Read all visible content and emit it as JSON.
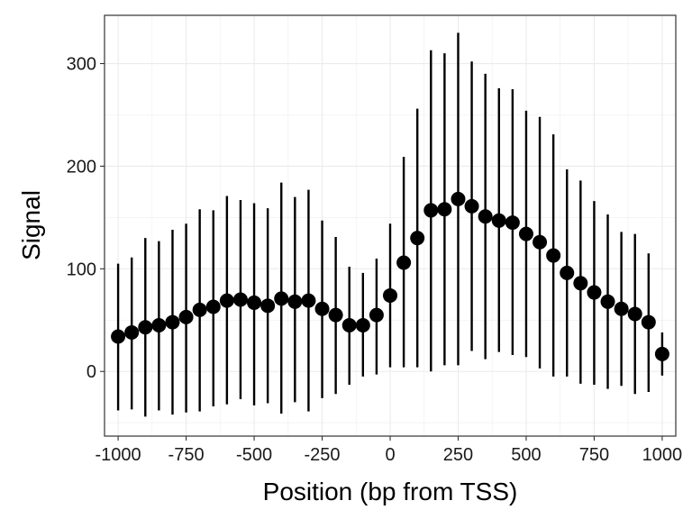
{
  "chart_data": {
    "type": "scatter",
    "title": "",
    "xlabel": "Position (bp from TSS)",
    "ylabel": "Signal",
    "xlim": [
      -1050,
      1050
    ],
    "ylim": [
      -63,
      347
    ],
    "x_ticks": [
      -1000,
      -750,
      -500,
      -250,
      0,
      250,
      500,
      750,
      1000
    ],
    "x_tick_labels": [
      "-1000",
      "-750",
      "-500",
      "-250",
      "0",
      "250",
      "500",
      "750",
      "1000"
    ],
    "y_ticks": [
      0,
      100,
      200,
      300
    ],
    "y_tick_labels": [
      "0",
      "100",
      "200",
      "300"
    ],
    "grid": true,
    "legend": "none",
    "error_bars": true,
    "point_color": "#000000",
    "points": [
      {
        "x": -1000,
        "y": 34,
        "ymin": -38,
        "ymax": 105
      },
      {
        "x": -950,
        "y": 38,
        "ymin": -37,
        "ymax": 111
      },
      {
        "x": -900,
        "y": 43,
        "ymin": -44,
        "ymax": 130
      },
      {
        "x": -850,
        "y": 45,
        "ymin": -38,
        "ymax": 127
      },
      {
        "x": -800,
        "y": 48,
        "ymin": -42,
        "ymax": 138
      },
      {
        "x": -750,
        "y": 53,
        "ymin": -40,
        "ymax": 144
      },
      {
        "x": -700,
        "y": 60,
        "ymin": -39,
        "ymax": 158
      },
      {
        "x": -650,
        "y": 63,
        "ymin": -34,
        "ymax": 157
      },
      {
        "x": -600,
        "y": 69,
        "ymin": -32,
        "ymax": 171
      },
      {
        "x": -550,
        "y": 70,
        "ymin": -27,
        "ymax": 167
      },
      {
        "x": -500,
        "y": 67,
        "ymin": -33,
        "ymax": 164
      },
      {
        "x": -450,
        "y": 64,
        "ymin": -31,
        "ymax": 159
      },
      {
        "x": -400,
        "y": 71,
        "ymin": -41,
        "ymax": 184
      },
      {
        "x": -350,
        "y": 68,
        "ymin": -30,
        "ymax": 170
      },
      {
        "x": -300,
        "y": 69,
        "ymin": -39,
        "ymax": 177
      },
      {
        "x": -250,
        "y": 61,
        "ymin": -26,
        "ymax": 147
      },
      {
        "x": -200,
        "y": 55,
        "ymin": -22,
        "ymax": 131
      },
      {
        "x": -150,
        "y": 45,
        "ymin": -13,
        "ymax": 102
      },
      {
        "x": -100,
        "y": 45,
        "ymin": -5,
        "ymax": 96
      },
      {
        "x": -50,
        "y": 55,
        "ymin": -3,
        "ymax": 110
      },
      {
        "x": 0,
        "y": 74,
        "ymin": 4,
        "ymax": 144
      },
      {
        "x": 50,
        "y": 106,
        "ymin": 4,
        "ymax": 209
      },
      {
        "x": 100,
        "y": 130,
        "ymin": 4,
        "ymax": 256
      },
      {
        "x": 150,
        "y": 157,
        "ymin": 0,
        "ymax": 313
      },
      {
        "x": 200,
        "y": 158,
        "ymin": 6,
        "ymax": 310
      },
      {
        "x": 250,
        "y": 168,
        "ymin": 6,
        "ymax": 330
      },
      {
        "x": 300,
        "y": 161,
        "ymin": 20,
        "ymax": 302
      },
      {
        "x": 350,
        "y": 151,
        "ymin": 12,
        "ymax": 290
      },
      {
        "x": 400,
        "y": 147,
        "ymin": 19,
        "ymax": 276
      },
      {
        "x": 450,
        "y": 145,
        "ymin": 16,
        "ymax": 275
      },
      {
        "x": 500,
        "y": 134,
        "ymin": 14,
        "ymax": 254
      },
      {
        "x": 550,
        "y": 126,
        "ymin": 3,
        "ymax": 248
      },
      {
        "x": 600,
        "y": 113,
        "ymin": -5,
        "ymax": 231
      },
      {
        "x": 650,
        "y": 96,
        "ymin": -5,
        "ymax": 197
      },
      {
        "x": 700,
        "y": 86,
        "ymin": -12,
        "ymax": 186
      },
      {
        "x": 750,
        "y": 77,
        "ymin": -13,
        "ymax": 166
      },
      {
        "x": 800,
        "y": 68,
        "ymin": -17,
        "ymax": 153
      },
      {
        "x": 850,
        "y": 61,
        "ymin": -14,
        "ymax": 136
      },
      {
        "x": 900,
        "y": 56,
        "ymin": -22,
        "ymax": 134
      },
      {
        "x": 950,
        "y": 48,
        "ymin": -20,
        "ymax": 115
      },
      {
        "x": 1000,
        "y": 17,
        "ymin": -4,
        "ymax": 38
      }
    ]
  }
}
